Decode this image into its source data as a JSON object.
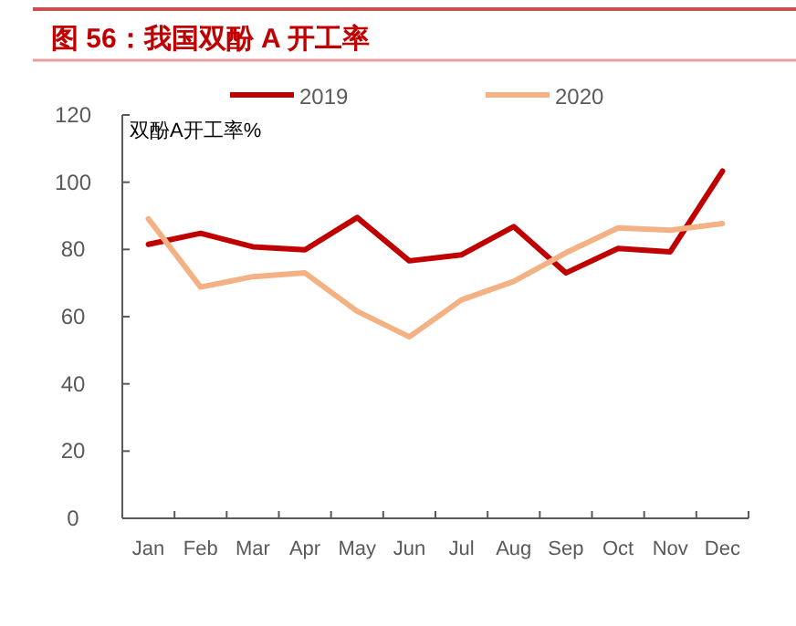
{
  "chart_data": {
    "type": "line",
    "title": "图 56：我国双酚 A 开工率",
    "ylabel": "双酚A开工率%",
    "categories": [
      "Jan",
      "Feb",
      "Mar",
      "Apr",
      "May",
      "Jun",
      "Jul",
      "Aug",
      "Sep",
      "Oct",
      "Nov",
      "Dec"
    ],
    "series": [
      {
        "name": "2019",
        "color": "#c00000",
        "values": [
          81.5,
          84.8,
          80.8,
          79.9,
          89.5,
          76.6,
          78.4,
          86.8,
          73,
          80.3,
          79.3,
          103.3
        ]
      },
      {
        "name": "2020",
        "color": "#f4b183",
        "values": [
          89.1,
          68.8,
          71.9,
          73,
          61.6,
          54,
          65,
          70.5,
          79,
          86.4,
          85.7,
          87.7
        ]
      }
    ],
    "ylim": [
      0,
      120
    ],
    "yticks": [
      0,
      20,
      40,
      60,
      80,
      100,
      120
    ],
    "grid": false,
    "legend": "top",
    "marker": "none",
    "line_style": "solid"
  }
}
